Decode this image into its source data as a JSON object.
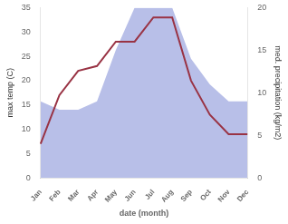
{
  "chart_data": {
    "type": "line",
    "xlabel": "date (month)",
    "ylabel": "max temp (C)",
    "y2label": "med. precipitation (kg/m2)",
    "categories": [
      "Jan",
      "Feb",
      "Mar",
      "Apr",
      "May",
      "Jun",
      "Jul",
      "Aug",
      "Sep",
      "Oct",
      "Nov",
      "Dec"
    ],
    "ylim": [
      0,
      35
    ],
    "yticks": [
      0,
      5,
      10,
      15,
      20,
      25,
      30,
      35
    ],
    "y2lim": [
      0,
      20
    ],
    "y2ticks": [
      0,
      5,
      10,
      15,
      20
    ],
    "grid": false,
    "series": [
      {
        "type": "area",
        "color": "#b8bfe8",
        "axis": "y2",
        "values": [
          9,
          8,
          8,
          9,
          15,
          20,
          20,
          20,
          14,
          11,
          9,
          9
        ]
      },
      {
        "type": "line",
        "color": "#993344",
        "values": [
          7,
          17,
          22,
          23,
          28,
          28,
          33,
          33,
          20,
          13,
          9,
          9
        ]
      }
    ]
  }
}
